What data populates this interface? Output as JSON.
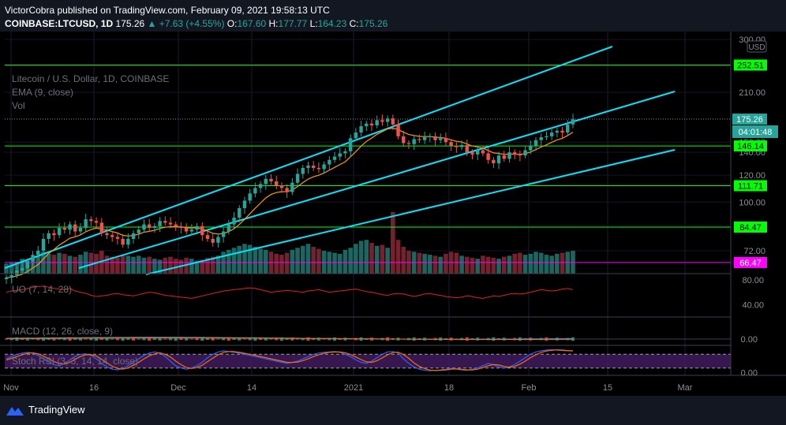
{
  "header": {
    "published_line": "VictorCobra published on TradingView.com, February 09, 2021 19:58:13 UTC",
    "symbol": "COINBASE:LTCUSD, 1D",
    "last": "175.26",
    "change": "▲ +7.63 (+4.55%)",
    "o_label": "O:",
    "o": "167.60",
    "h_label": "H:",
    "h": "177.77",
    "l_label": "L:",
    "l": "164.23",
    "c_label": "C:",
    "c": "175.26"
  },
  "legend": {
    "title": "Litecoin / U.S. Dollar, 1D, COINBASE",
    "ema": "EMA (9, close)",
    "vol": "Vol"
  },
  "indicators": {
    "uo": "UO (7, 14, 28)",
    "macd": "MACD (12, 26, close, 9)",
    "stoch": "Stoch RSI (3, 3, 14, 14, close)"
  },
  "footer": {
    "brand": "TradingView"
  },
  "colors": {
    "background": "#000000",
    "up": "#26a69a",
    "down": "#ef5350",
    "channel": "#00e5ff",
    "level": "#00ff00",
    "ema": "#ff9800",
    "uo": "#e02020",
    "pink": "#ff00ff"
  },
  "chart_data": [
    {
      "type": "candlestick",
      "title": "Litecoin / U.S. Dollar, 1D, COINBASE",
      "currency": "USD",
      "scale": "log",
      "ylim": [
        62,
        310
      ],
      "y_ticks": [
        "300.00",
        "210.00",
        "150.00",
        "140.00",
        "120.00",
        "100.00",
        "72.00"
      ],
      "x_ticks": [
        "Nov",
        "16",
        "Dec",
        "14",
        "2021",
        "18",
        "Feb",
        "15",
        "Mar"
      ],
      "horizontal_levels": [
        {
          "value": 252.51,
          "label": "252.51",
          "color": "#00ff00"
        },
        {
          "value": 146.14,
          "label": "146.14",
          "color": "#00ff00"
        },
        {
          "value": 111.71,
          "label": "111.71",
          "color": "#00ff00"
        },
        {
          "value": 84.47,
          "label": "84.47",
          "color": "#00ff00"
        },
        {
          "value": 66.47,
          "label": "66.47",
          "color": "#ff00ff"
        }
      ],
      "last_price": {
        "value": 175.26,
        "label": "175.26",
        "countdown": "04:01:48"
      },
      "close_series_approx": [
        60,
        61,
        63,
        64,
        67,
        70,
        72,
        78,
        81,
        80,
        84,
        83,
        86,
        82,
        84,
        89,
        88,
        87,
        81,
        80,
        79,
        78,
        75,
        78,
        81,
        83,
        86,
        84,
        85,
        88,
        87,
        86,
        85,
        84,
        82,
        83,
        85,
        80,
        78,
        76,
        79,
        82,
        86,
        90,
        96,
        101,
        106,
        110,
        113,
        117,
        115,
        112,
        110,
        107,
        114,
        121,
        126,
        128,
        126,
        125,
        129,
        133,
        136,
        139,
        141,
        154,
        160,
        167,
        170,
        168,
        174,
        172,
        176,
        169,
        156,
        149,
        148,
        153,
        152,
        155,
        156,
        152,
        154,
        150,
        146,
        145,
        147,
        140,
        138,
        142,
        139,
        133,
        130,
        137,
        134,
        140,
        138,
        137,
        142,
        146,
        152,
        155,
        156,
        160,
        162,
        160,
        169,
        175
      ],
      "volume_approx": [
        10,
        11,
        12,
        15,
        14,
        16,
        18,
        22,
        20,
        19,
        21,
        20,
        18,
        17,
        19,
        22,
        21,
        20,
        23,
        18,
        17,
        16,
        19,
        18,
        17,
        18,
        16,
        17,
        15,
        14,
        16,
        17,
        15,
        14,
        16,
        15,
        13,
        14,
        16,
        17,
        18,
        22,
        24,
        26,
        28,
        30,
        29,
        27,
        25,
        24,
        22,
        20,
        19,
        21,
        24,
        26,
        28,
        30,
        27,
        25,
        23,
        22,
        21,
        20,
        24,
        26,
        30,
        33,
        34,
        31,
        28,
        29,
        26,
        62,
        34,
        27,
        23,
        22,
        21,
        20,
        19,
        18,
        17,
        20,
        22,
        21,
        18,
        17,
        16,
        15,
        18,
        17,
        16,
        15,
        17,
        18,
        20,
        21,
        19,
        20,
        22,
        21,
        19,
        18,
        20,
        21,
        22,
        23
      ],
      "ema": {
        "name": "EMA (9, close)",
        "period": 9
      }
    },
    {
      "type": "line",
      "title": "UO (7, 14, 28)",
      "ylim": [
        20,
        90
      ],
      "y_ticks": [
        "80.00",
        "40.00"
      ],
      "values_approx": [
        60,
        62,
        63,
        64,
        66,
        68,
        69,
        70,
        68,
        66,
        65,
        64,
        66,
        62,
        60,
        58,
        55,
        53,
        54,
        55,
        57,
        58,
        56,
        55,
        54,
        56,
        58,
        60,
        59,
        57,
        55,
        54,
        53,
        52,
        51,
        50,
        52,
        54,
        56,
        58,
        60,
        62,
        63,
        64,
        65,
        66,
        67,
        66,
        64,
        62,
        60,
        61,
        62,
        63,
        62,
        61,
        60,
        62,
        63,
        64,
        62,
        60,
        61,
        62,
        63,
        64,
        65,
        63,
        61,
        60,
        58,
        56,
        55,
        57,
        58,
        57,
        55,
        53,
        55,
        57,
        58,
        56,
        55,
        53,
        52,
        51,
        52,
        54,
        53,
        51,
        50,
        52,
        54,
        53,
        55,
        57,
        58,
        57,
        58,
        60,
        62,
        64,
        63,
        62,
        63,
        65,
        66,
        64
      ]
    },
    {
      "type": "line",
      "title": "MACD (12, 26, close, 9)",
      "y_ticks": [
        "0.00"
      ]
    },
    {
      "type": "line",
      "title": "Stoch RSI (3, 3, 14, 14, close)",
      "ylim": [
        -5,
        105
      ],
      "y_ticks": [
        "0.00"
      ],
      "k_approx": [
        60,
        70,
        80,
        85,
        88,
        85,
        75,
        60,
        45,
        35,
        30,
        40,
        55,
        70,
        80,
        82,
        75,
        60,
        40,
        25,
        15,
        12,
        18,
        30,
        45,
        60,
        75,
        85,
        90,
        85,
        70,
        50,
        30,
        20,
        15,
        20,
        30,
        45,
        65,
        80,
        90,
        95,
        92,
        88,
        85,
        80,
        75,
        70,
        65,
        60,
        55,
        50,
        45,
        40,
        45,
        50,
        60,
        70,
        80,
        85,
        88,
        90,
        92,
        88,
        80,
        70,
        55,
        45,
        40,
        50,
        65,
        80,
        90,
        92,
        85,
        60,
        40,
        25,
        15,
        10,
        8,
        10,
        12,
        15,
        18,
        15,
        12,
        10,
        15,
        20,
        30,
        40,
        35,
        25,
        20,
        25,
        35,
        50,
        65,
        80,
        90,
        95,
        98,
        100,
        98,
        96,
        95,
        94
      ],
      "d_approx": [
        55,
        62,
        70,
        78,
        84,
        86,
        82,
        72,
        60,
        48,
        40,
        38,
        45,
        58,
        70,
        78,
        78,
        72,
        58,
        42,
        28,
        18,
        15,
        20,
        32,
        45,
        60,
        73,
        82,
        86,
        80,
        68,
        50,
        35,
        22,
        18,
        22,
        32,
        48,
        63,
        78,
        88,
        92,
        92,
        88,
        84,
        80,
        75,
        70,
        65,
        60,
        55,
        50,
        45,
        44,
        46,
        52,
        60,
        70,
        78,
        84,
        88,
        90,
        90,
        86,
        79,
        68,
        57,
        47,
        45,
        52,
        64,
        78,
        87,
        89,
        79,
        62,
        42,
        27,
        17,
        11,
        9,
        10,
        12,
        15,
        16,
        15,
        12,
        12,
        15,
        22,
        30,
        35,
        33,
        27,
        23,
        27,
        37,
        50,
        65,
        78,
        88,
        94,
        97,
        99,
        98,
        96,
        95
      ]
    }
  ]
}
